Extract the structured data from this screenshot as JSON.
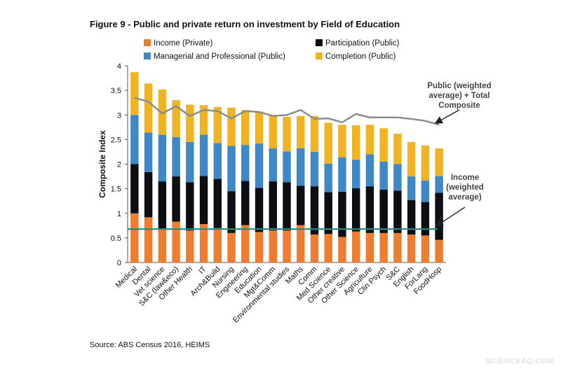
{
  "figure_title": "Figure 9 - Public and private return on investment by Field of Education",
  "source": "Source: ABS Census 2016, HEIMS",
  "watermark": "SCIENCEAQ.COM",
  "chart_data": {
    "type": "bar",
    "stacked": true,
    "title": "Figure 9 - Public and private return on investment by Field of Education",
    "xlabel": "",
    "ylabel": "Composite Index",
    "ylim": [
      0,
      4
    ],
    "yticks": [
      "0",
      "0.5",
      "1",
      "1.5",
      "2",
      "2.5",
      "3",
      "3.5",
      "4"
    ],
    "grid": false,
    "legend_position": "top",
    "categories": [
      "Medical",
      "Dental",
      "Vet science",
      "S&C (law&eco)",
      "Other Health",
      "IT",
      "Arch&Build",
      "Nursing",
      "Engineering",
      "Education",
      "Mgt&Comm",
      "Environmental studies",
      "Maths",
      "Comm",
      "Med Science",
      "Other creative",
      "Other Science",
      "Agriculture",
      "Clin Psych",
      "S&C",
      "English",
      "ForLang",
      "FoodHosp"
    ],
    "series": [
      {
        "name": "Income (Private)",
        "color": "#ed7d31",
        "values": [
          1.0,
          0.92,
          0.68,
          0.83,
          0.65,
          0.78,
          0.7,
          0.6,
          0.76,
          0.62,
          0.65,
          0.65,
          0.76,
          0.57,
          0.58,
          0.52,
          0.63,
          0.6,
          0.6,
          0.6,
          0.57,
          0.55,
          0.46
        ]
      },
      {
        "name": "Participation (Public)",
        "color": "#0d0d14",
        "values": [
          1.0,
          0.92,
          0.97,
          0.92,
          0.98,
          0.98,
          1.0,
          0.85,
          0.9,
          0.9,
          1.0,
          0.98,
          0.8,
          0.98,
          0.85,
          0.92,
          0.88,
          0.95,
          0.88,
          0.86,
          0.7,
          0.68,
          0.96
        ]
      },
      {
        "name": "Managerial and Professional (Public)",
        "color": "#3f88c5",
        "values": [
          1.0,
          0.8,
          0.95,
          0.8,
          0.82,
          0.84,
          0.73,
          0.92,
          0.73,
          0.9,
          0.67,
          0.63,
          0.76,
          0.7,
          0.58,
          0.7,
          0.58,
          0.65,
          0.57,
          0.54,
          0.48,
          0.44,
          0.34
        ]
      },
      {
        "name": "Completion (Public)",
        "color": "#f0b323",
        "values": [
          0.87,
          1.0,
          0.92,
          0.75,
          0.76,
          0.6,
          0.73,
          0.78,
          0.71,
          0.65,
          0.68,
          0.7,
          0.66,
          0.73,
          0.83,
          0.66,
          0.7,
          0.6,
          0.68,
          0.62,
          0.7,
          0.71,
          0.56
        ]
      }
    ],
    "lines": [
      {
        "name": "Public (weighted average) + Total Composite",
        "color": "#8c8c8c",
        "values": [
          3.35,
          3.27,
          3.03,
          3.18,
          2.98,
          3.1,
          3.08,
          2.93,
          3.08,
          3.06,
          2.98,
          3.0,
          3.1,
          2.92,
          2.93,
          2.85,
          3.02,
          2.95,
          2.95,
          2.95,
          2.92,
          2.88,
          2.8
        ]
      },
      {
        "name": "Income (weighted average)",
        "color": "#2a8a82",
        "values": [
          0.68,
          0.68,
          0.68,
          0.68,
          0.68,
          0.68,
          0.68,
          0.68,
          0.68,
          0.68,
          0.68,
          0.68,
          0.68,
          0.68,
          0.68,
          0.68,
          0.68,
          0.68,
          0.68,
          0.68,
          0.68,
          0.68,
          0.68
        ]
      }
    ],
    "annotations": [
      {
        "lines": [
          "Public (weighted",
          "average) + Total",
          "Composite"
        ]
      },
      {
        "lines": [
          "Income",
          "(weighted",
          "average)"
        ]
      }
    ]
  }
}
